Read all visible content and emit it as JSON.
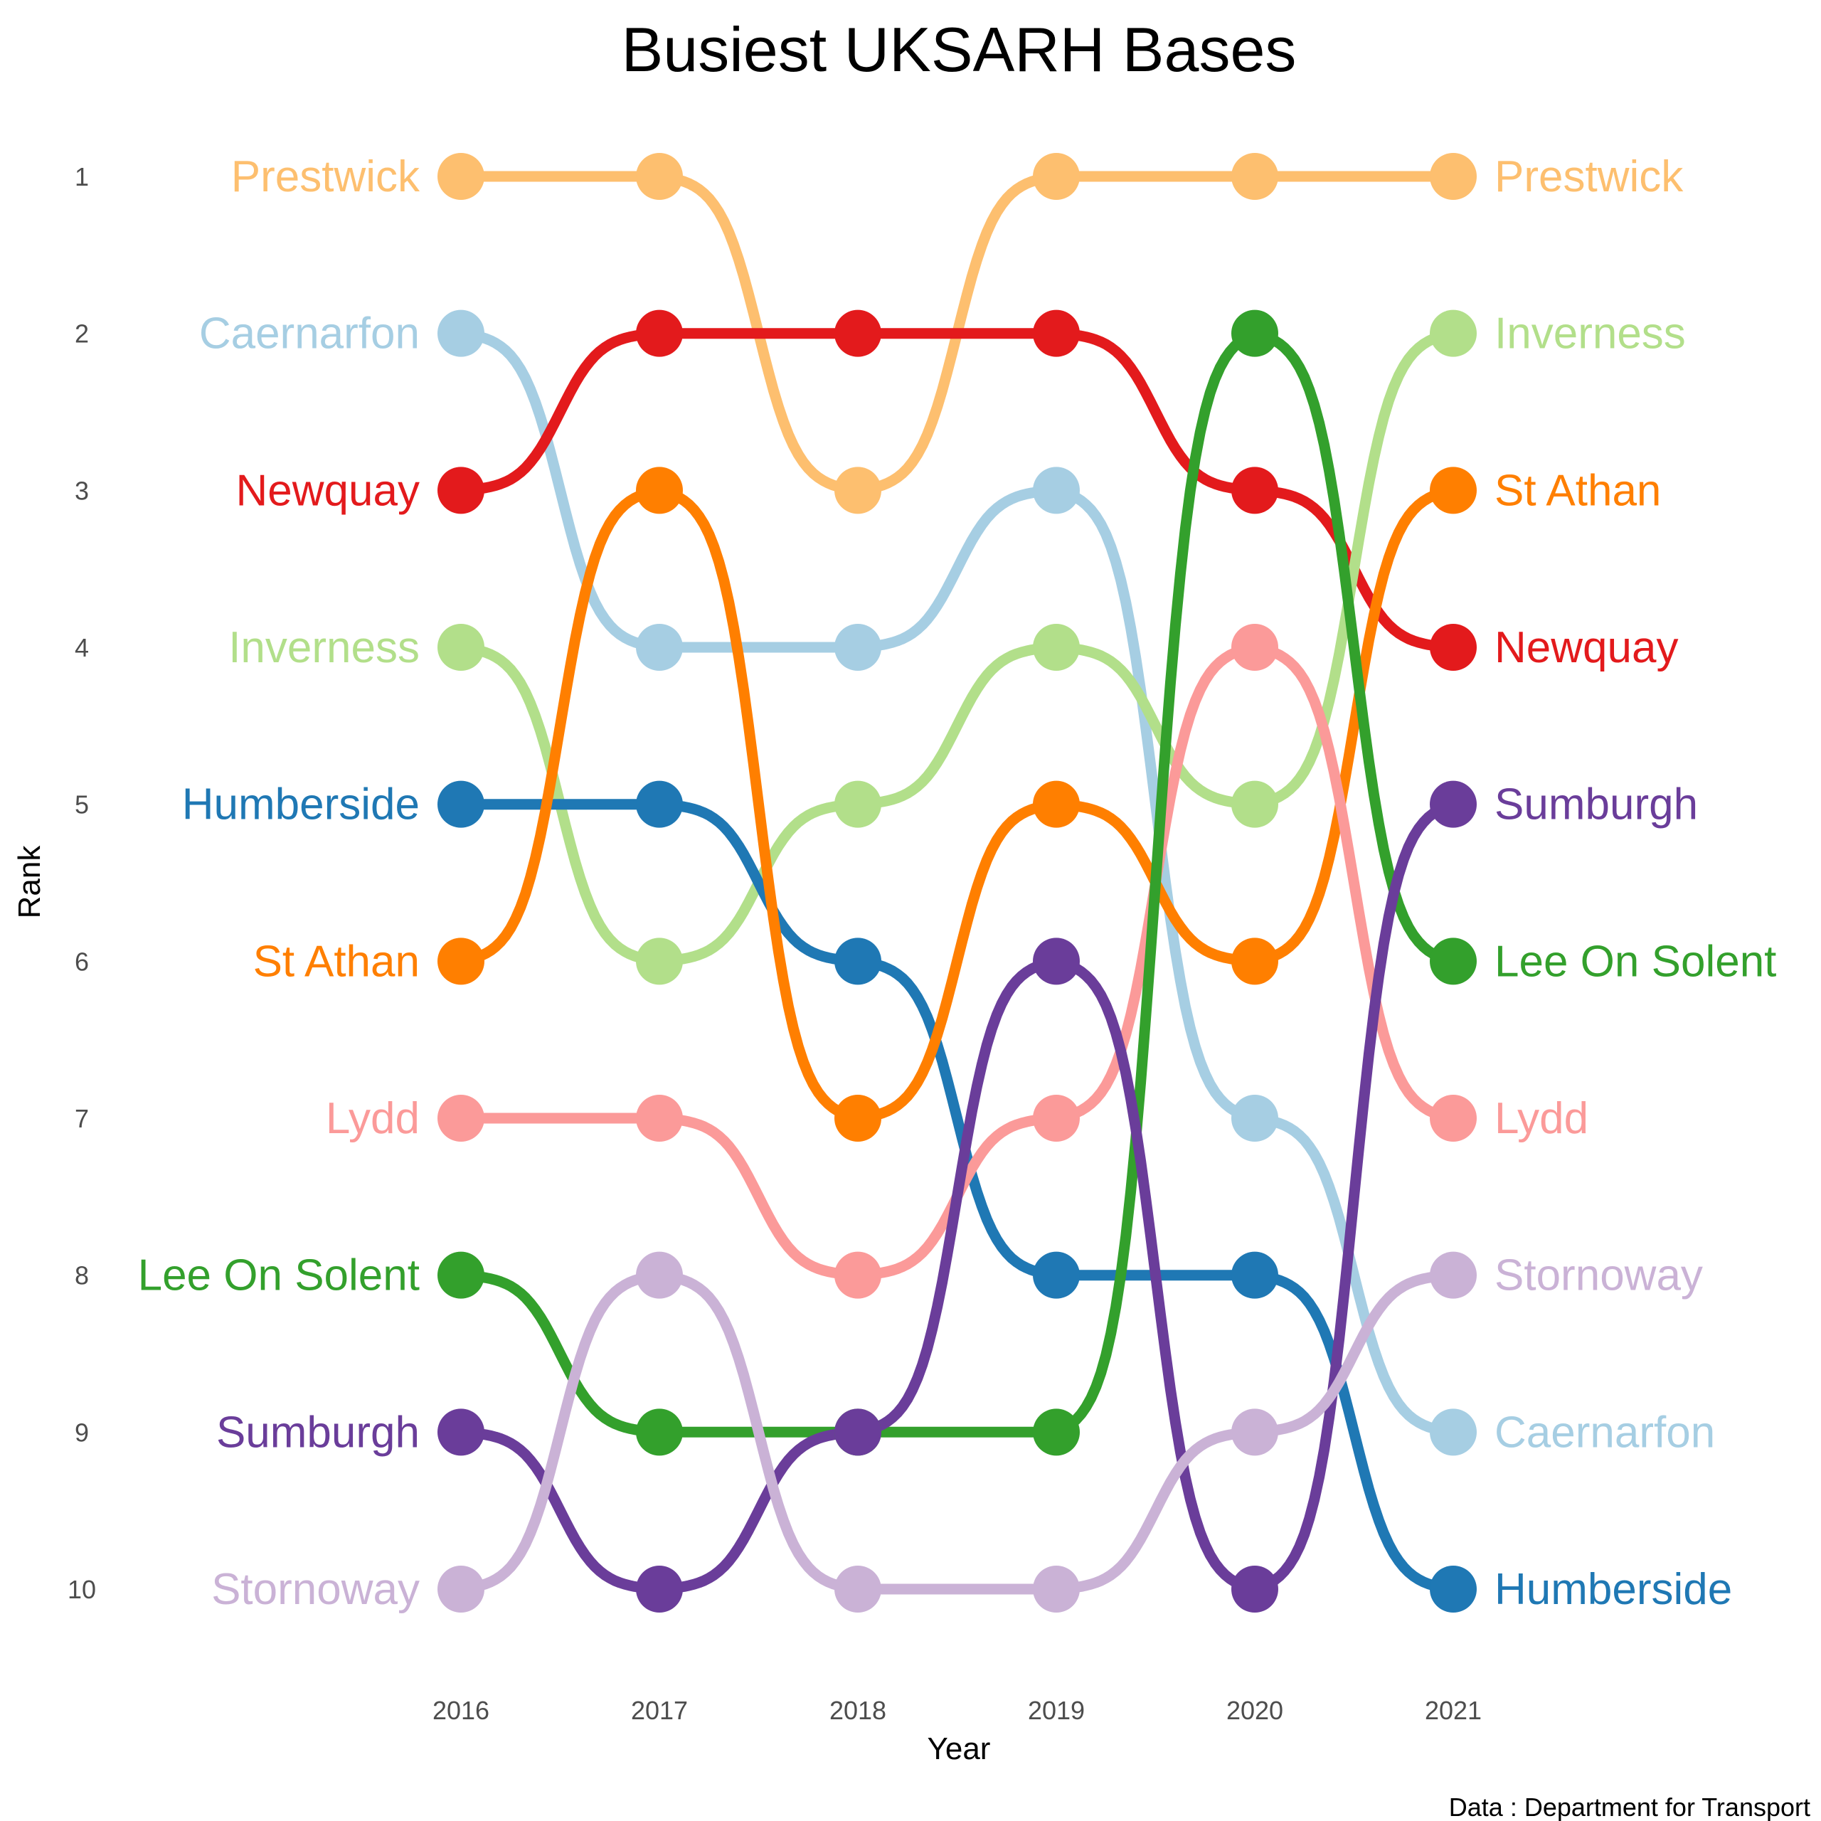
{
  "chart_data": {
    "type": "line",
    "title": "Busiest UKSARH Bases",
    "xlabel": "Year",
    "ylabel": "Rank",
    "caption": "Data : Department for Transport",
    "x": [
      "2016",
      "2017",
      "2018",
      "2019",
      "2020",
      "2021"
    ],
    "y_ticks": [
      "1",
      "2",
      "3",
      "4",
      "5",
      "6",
      "7",
      "8",
      "9",
      "10"
    ],
    "ylim": [
      1,
      10
    ],
    "y_reversed": true,
    "grid": false,
    "legend": "none",
    "series": [
      {
        "name": "Prestwick",
        "color": "#FDBF6F",
        "ranks": [
          1,
          1,
          3,
          1,
          1,
          1
        ]
      },
      {
        "name": "Caernarfon",
        "color": "#A6CEE3",
        "ranks": [
          2,
          4,
          4,
          3,
          7,
          9
        ]
      },
      {
        "name": "Newquay",
        "color": "#E31A1C",
        "ranks": [
          3,
          2,
          2,
          2,
          3,
          4
        ]
      },
      {
        "name": "Inverness",
        "color": "#B2DF8A",
        "ranks": [
          4,
          6,
          5,
          4,
          5,
          2
        ]
      },
      {
        "name": "Humberside",
        "color": "#1F78B4",
        "ranks": [
          5,
          5,
          6,
          8,
          8,
          10
        ]
      },
      {
        "name": "St Athan",
        "color": "#FF7F00",
        "ranks": [
          6,
          3,
          7,
          5,
          6,
          3
        ]
      },
      {
        "name": "Lydd",
        "color": "#FB9A99",
        "ranks": [
          7,
          7,
          8,
          7,
          4,
          7
        ]
      },
      {
        "name": "Lee On Solent",
        "color": "#33A02C",
        "ranks": [
          8,
          9,
          9,
          9,
          2,
          6
        ]
      },
      {
        "name": "Sumburgh",
        "color": "#6A3D9A",
        "ranks": [
          9,
          10,
          9,
          6,
          10,
          5
        ]
      },
      {
        "name": "Stornoway",
        "color": "#CAB2D6",
        "ranks": [
          10,
          8,
          10,
          10,
          9,
          8
        ]
      }
    ]
  }
}
